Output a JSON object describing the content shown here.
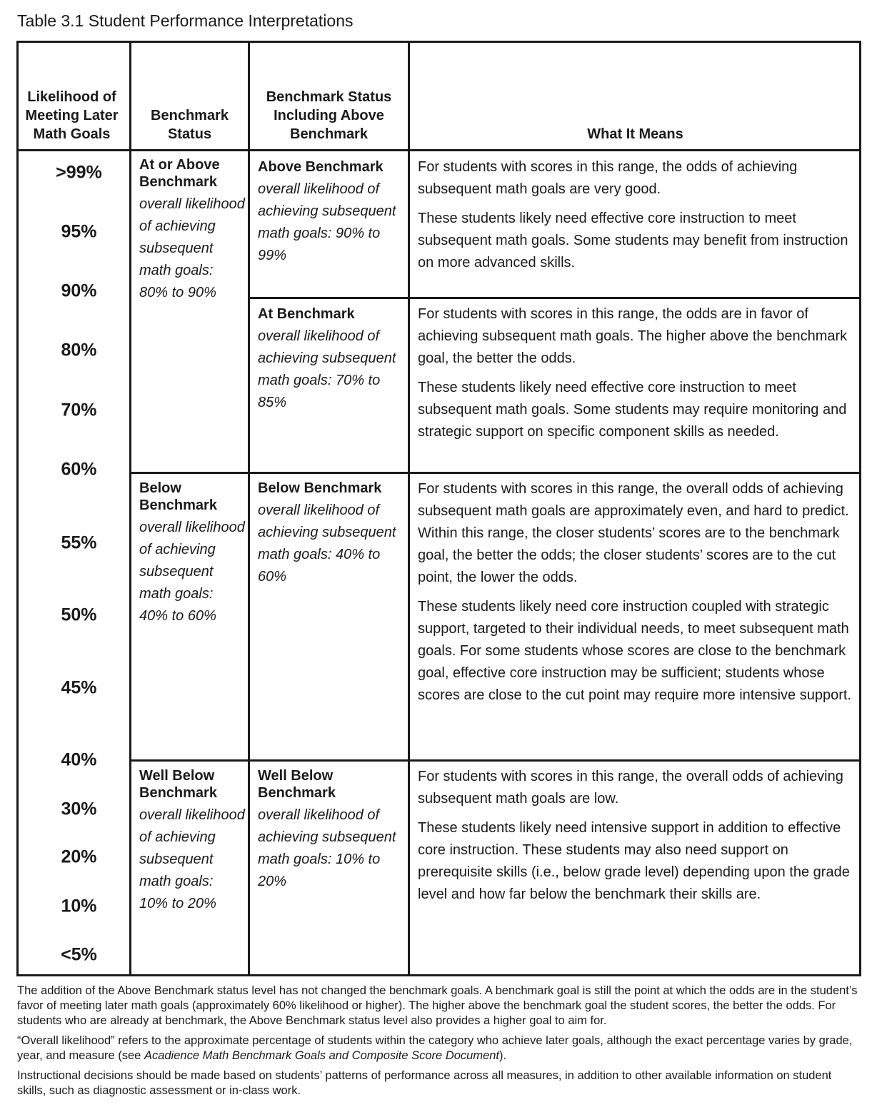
{
  "title": "Table 3.1 Student Performance Interpretations",
  "table": {
    "headers": [
      "Likelihood of Meeting Later Math Goals",
      "Benchmark Status",
      "Benchmark Status Including Above Benchmark",
      "What It Means"
    ],
    "likelihoods": [
      ">99%",
      "95%",
      "90%",
      "80%",
      "70%",
      "60%",
      "55%",
      "50%",
      "45%",
      "40%",
      "30%",
      "20%",
      "10%",
      "<5%"
    ],
    "statuses": [
      {
        "title": "At or Above Benchmark",
        "description": "overall likelihood of achieving subsequent math goals: 80% to 90%"
      },
      {
        "title": "Below Benchmark",
        "description": "overall likelihood of achieving subsequent math goals: 40% to 60%"
      },
      {
        "title": "Well Below Benchmark",
        "description": "overall likelihood of achieving subsequent math goals: 10% to 20%"
      }
    ],
    "sub_statuses": [
      {
        "title": "Above Benchmark",
        "description": "overall likelihood of achieving subsequent math goals: 90% to 99%"
      },
      {
        "title": "At Benchmark",
        "description": "overall likelihood of achieving subsequent math goals: 70% to 85%"
      },
      {
        "title": "Below Benchmark",
        "description": "overall likelihood of achieving subsequent math goals: 40% to 60%"
      },
      {
        "title": "Well Below Benchmark",
        "description": "overall likelihood of achieving subsequent math goals: 10% to 20%"
      }
    ],
    "meanings": [
      [
        "For students with scores in this range, the odds of achieving subsequent math goals are very good.",
        "These students likely need effective core instruction to meet subsequent math goals. Some students may benefit from instruction on more advanced skills."
      ],
      [
        "For students with scores in this range, the odds are in favor of achieving subsequent math goals. The higher above the benchmark goal, the better the odds.",
        "These students likely need effective core instruction to meet subsequent math goals. Some students may require monitoring and strategic support on specific component skills as needed."
      ],
      [
        "For students with scores in this range, the overall odds of achieving subsequent math goals are approximately even, and hard to predict. Within this range, the closer students’ scores are to the benchmark goal, the better the odds; the closer students’ scores are to the cut point, the lower the odds.",
        "These students likely need core instruction coupled with strategic support, targeted to their individual needs, to meet subsequent math goals. For some students whose scores are close to the benchmark goal, effective core instruction may be sufficient; students whose scores are close to the cut point may require more intensive support."
      ],
      [
        "For students with scores in this range, the overall odds of achieving subsequent math goals are low.",
        "These students likely need intensive support in addition to effective core instruction. These students may also need support on prerequisite skills (i.e., below grade level) depending upon the grade level and how far below the benchmark their skills are."
      ]
    ]
  },
  "notes": [
    "The addition of the Above Benchmark status level has not changed the benchmark goals. A benchmark goal is still the point at which the odds are in the student’s favor of meeting later math goals (approximately 60% likelihood or higher). The higher above the benchmark goal the student scores, the better the odds. For students who are already at benchmark, the Above Benchmark status level also provides a higher goal to aim for.",
    [
      "“Overall likelihood” refers to the approximate percentage of students within the category who achieve later goals, although the exact percentage varies by grade, year, and measure (see ",
      "Acadience Math Benchmark Goals and Composite Score Document",
      ")."
    ],
    "Instructional decisions should be made based on students’ patterns of performance across all measures, in addition to other available information on student skills, such as diagnostic assessment or in-class work."
  ]
}
